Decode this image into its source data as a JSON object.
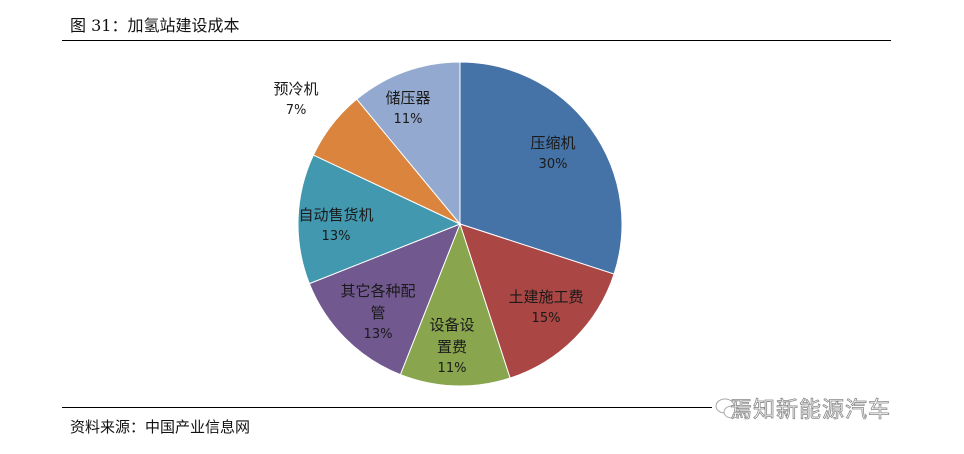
{
  "title": "图 31：加氢站建设成本",
  "source": "资料来源：中国产业信息网",
  "watermark": "焉知新能源汽车",
  "chart_data": {
    "type": "pie",
    "start_angle": "12 o'clock, clockwise",
    "slices": [
      {
        "label": "压缩机",
        "value": 30,
        "display": "30%",
        "color": "#4572A7"
      },
      {
        "label": "土建施工费",
        "value": 15,
        "display": "15%",
        "color": "#AA4643"
      },
      {
        "label": "设备设置费",
        "value": 11,
        "display": "11%",
        "color": "#89A54E"
      },
      {
        "label": "其它各种配管",
        "value": 13,
        "display": "13%",
        "color": "#71588F"
      },
      {
        "label": "自动售货机",
        "value": 13,
        "display": "13%",
        "color": "#4198AF"
      },
      {
        "label": "预冷机",
        "value": 7,
        "display": "7%",
        "color": "#DB843D"
      },
      {
        "label": "储压器",
        "value": 11,
        "display": "11%",
        "color": "#93A9CF"
      }
    ]
  }
}
